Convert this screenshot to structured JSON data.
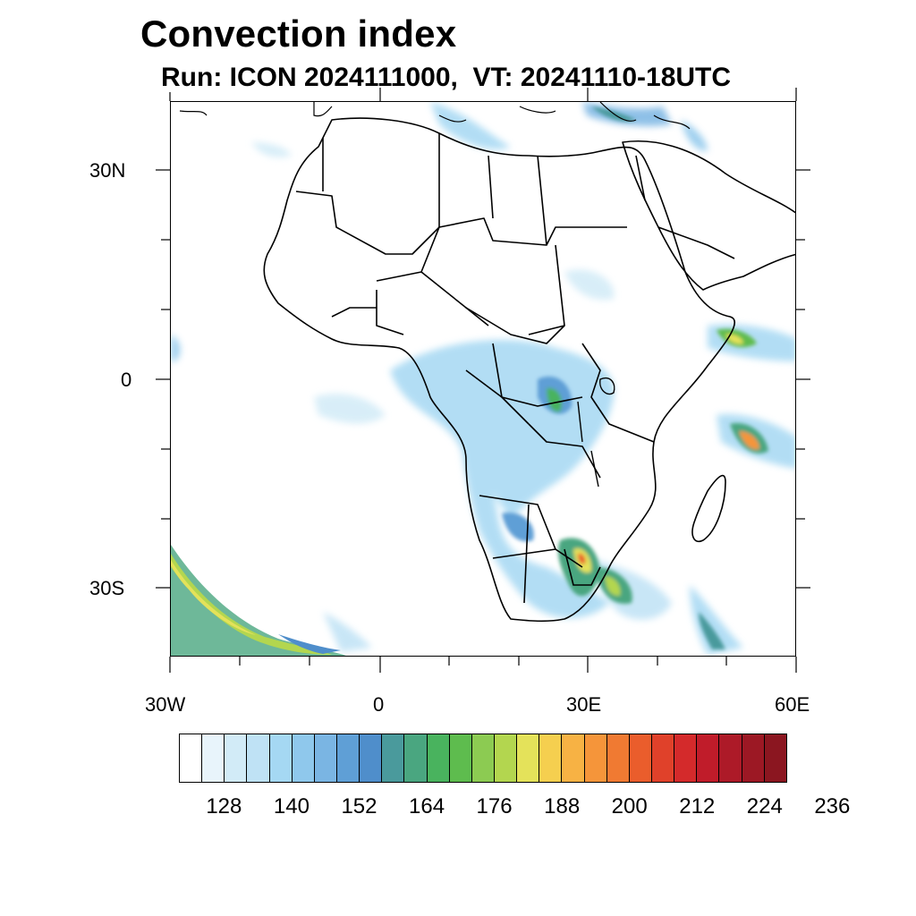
{
  "title": "Convection index",
  "subtitle": "Run: ICON 2024111000,  VT: 20241110-18UTC",
  "axes": {
    "lat_labels": [
      "30N",
      "0",
      "30S"
    ],
    "lon_labels": [
      "30W",
      "0",
      "30E",
      "60E"
    ]
  },
  "colorbar": {
    "colors": [
      "#ffffff",
      "#e8f4fb",
      "#d2ebf7",
      "#bfe2f5",
      "#a5d8f3",
      "#8fc8ec",
      "#7ab5e3",
      "#5f9fd6",
      "#4f8ecb",
      "#4a9a9c",
      "#4aa680",
      "#49b35e",
      "#5ebc4e",
      "#8ccb52",
      "#b3d64f",
      "#e4e25a",
      "#f5cf4f",
      "#f7b244",
      "#f5953a",
      "#f07a32",
      "#ea5d2c",
      "#e0412a",
      "#d42a2b",
      "#c01c2a",
      "#ad1a28",
      "#9c1824",
      "#8b1620"
    ],
    "tick_labels": [
      "128",
      "140",
      "152",
      "164",
      "176",
      "188",
      "200",
      "212",
      "224",
      "236"
    ]
  }
}
